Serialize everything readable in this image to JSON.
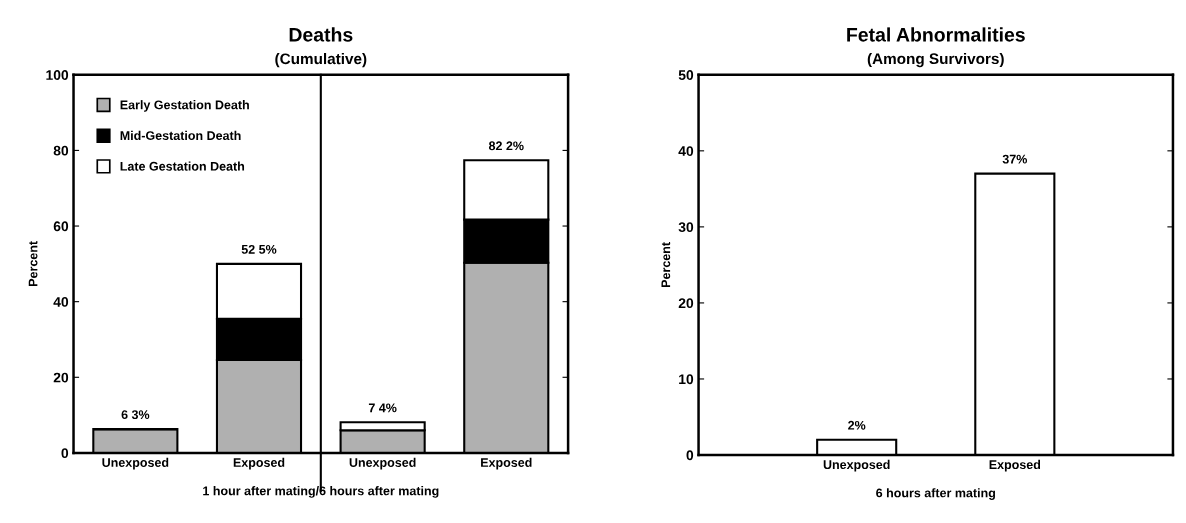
{
  "chart_data": [
    {
      "type": "bar",
      "title": "Deaths",
      "subtitle": "(Cumulative)",
      "ylabel": "Percent",
      "xlabel": "1 hour after mating/6 hours after mating",
      "categories": [
        "Unexposed",
        "Exposed",
        "Unexposed",
        "Exposed"
      ],
      "stacked": true,
      "series": [
        {
          "name": "Early Gestation Death",
          "color": "#b0b0b0",
          "values": [
            6.3,
            24.6,
            6.0,
            50.3
          ]
        },
        {
          "name": "Mid-Gestation Death",
          "color": "#000000",
          "values": [
            0,
            10.9,
            0,
            11.4
          ]
        },
        {
          "name": "Late Gestation Death",
          "color": "#ffffff",
          "values": [
            0,
            14.5,
            2.1,
            15.7
          ]
        }
      ],
      "totals": [
        "6 3%",
        "52 5%",
        "7 4%",
        "82 2%"
      ],
      "ylim": [
        0,
        100
      ],
      "yticks": [
        0,
        20,
        40,
        60,
        80,
        100
      ],
      "legend": "top left",
      "grid": false
    },
    {
      "type": "bar",
      "title": "Fetal Abnormalities",
      "subtitle": "(Among Survivors)",
      "ylabel": "Percent",
      "xlabel": "6 hours after mating",
      "categories": [
        "Unexposed",
        "Exposed"
      ],
      "values": [
        2,
        37
      ],
      "color": "#ffffff",
      "value_labels": [
        "2%",
        "37%"
      ],
      "ylim": [
        0,
        50
      ],
      "yticks": [
        0,
        10,
        20,
        30,
        40,
        50
      ],
      "grid": false
    }
  ]
}
